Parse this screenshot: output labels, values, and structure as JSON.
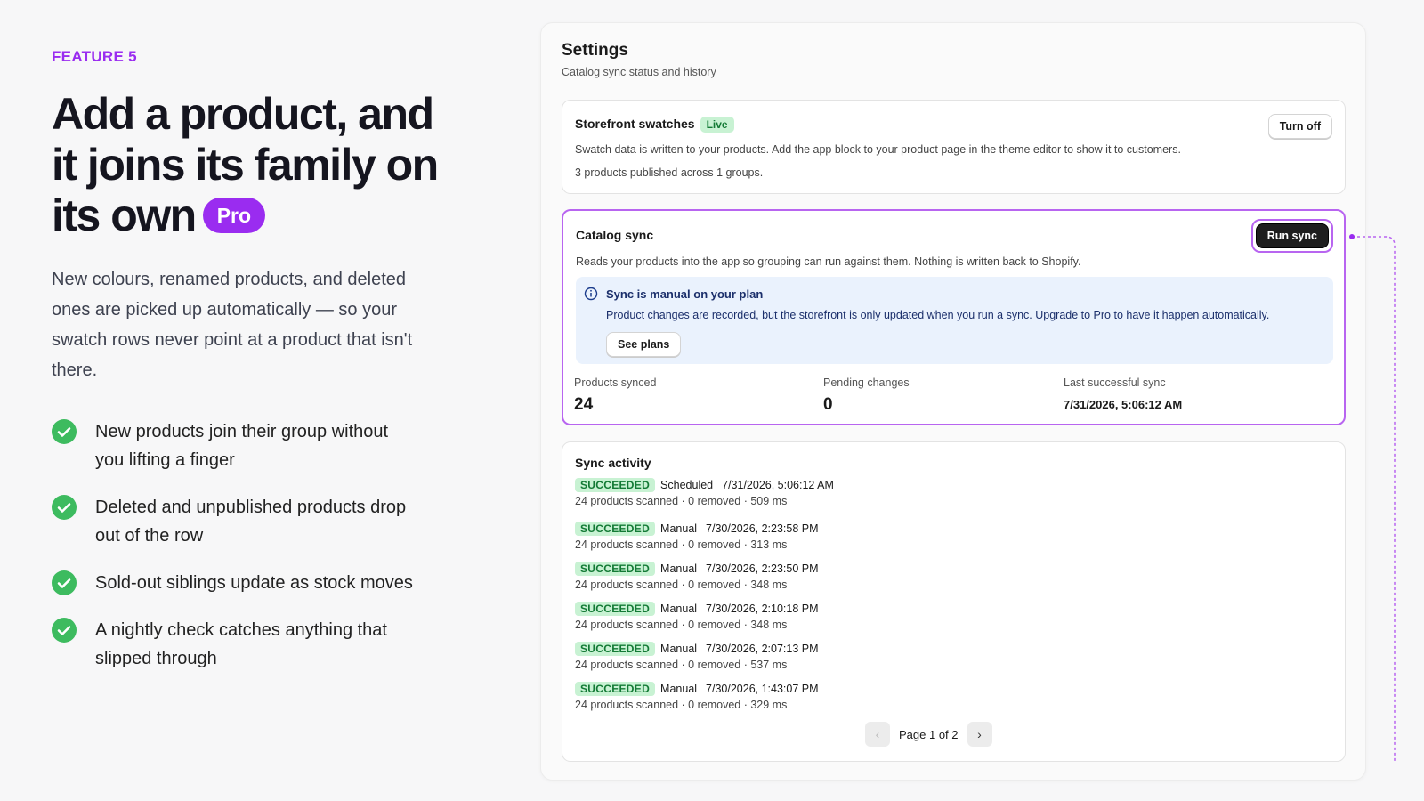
{
  "feature": {
    "eyebrow": "FEATURE 5",
    "title": "Add a product, and it joins its family on its own",
    "badge": "Pro",
    "description": "New colours, renamed products, and deleted ones are picked up automatically — so your swatch rows never point at a product that isn't there.",
    "bullets": [
      "New products join their group without you lifting a finger",
      "Deleted and unpublished products drop out of the row",
      "Sold-out siblings update as stock moves",
      "A nightly check catches anything that slipped through"
    ]
  },
  "settings": {
    "title": "Settings",
    "subtitle": "Catalog sync status and history",
    "storefront": {
      "title": "Storefront swatches",
      "status": "Live",
      "button": "Turn off",
      "description": "Swatch data is written to your products. Add the app block to your product page in the theme editor to show it to customers.",
      "summary": "3 products published across 1 groups."
    },
    "catalog_sync": {
      "title": "Catalog sync",
      "button": "Run sync",
      "description": "Reads your products into the app so grouping can run against them. Nothing is written back to Shopify.",
      "notice": {
        "title": "Sync is manual on your plan",
        "text": "Product changes are recorded, but the storefront is only updated when you run a sync. Upgrade to Pro to have it happen automatically.",
        "button": "See plans"
      },
      "stats": [
        {
          "label": "Products synced",
          "value": 24
        },
        {
          "label": "Pending changes",
          "value": 0
        },
        {
          "label": "Last successful sync",
          "value": "7/31/2026, 5:06:12 AM"
        }
      ]
    },
    "activity": {
      "title": "Sync activity",
      "entries": [
        {
          "status": "SUCCEEDED",
          "trigger": "Scheduled",
          "time": "7/31/2026, 5:06:12 AM",
          "detail": "24 products scanned · 0 removed · 509 ms"
        },
        {
          "status": "SUCCEEDED",
          "trigger": "Manual",
          "time": "7/30/2026, 2:23:58 PM",
          "detail": "24 products scanned · 0 removed · 313 ms"
        },
        {
          "status": "SUCCEEDED",
          "trigger": "Manual",
          "time": "7/30/2026, 2:23:50 PM",
          "detail": "24 products scanned · 0 removed · 348 ms"
        },
        {
          "status": "SUCCEEDED",
          "trigger": "Manual",
          "time": "7/30/2026, 2:10:18 PM",
          "detail": "24 products scanned · 0 removed · 348 ms"
        },
        {
          "status": "SUCCEEDED",
          "trigger": "Manual",
          "time": "7/30/2026, 2:07:13 PM",
          "detail": "24 products scanned · 0 removed · 537 ms"
        },
        {
          "status": "SUCCEEDED",
          "trigger": "Manual",
          "time": "7/30/2026, 1:43:07 PM",
          "detail": "24 products scanned · 0 removed · 329 ms"
        }
      ],
      "pagination": "Page 1 of 2"
    }
  }
}
